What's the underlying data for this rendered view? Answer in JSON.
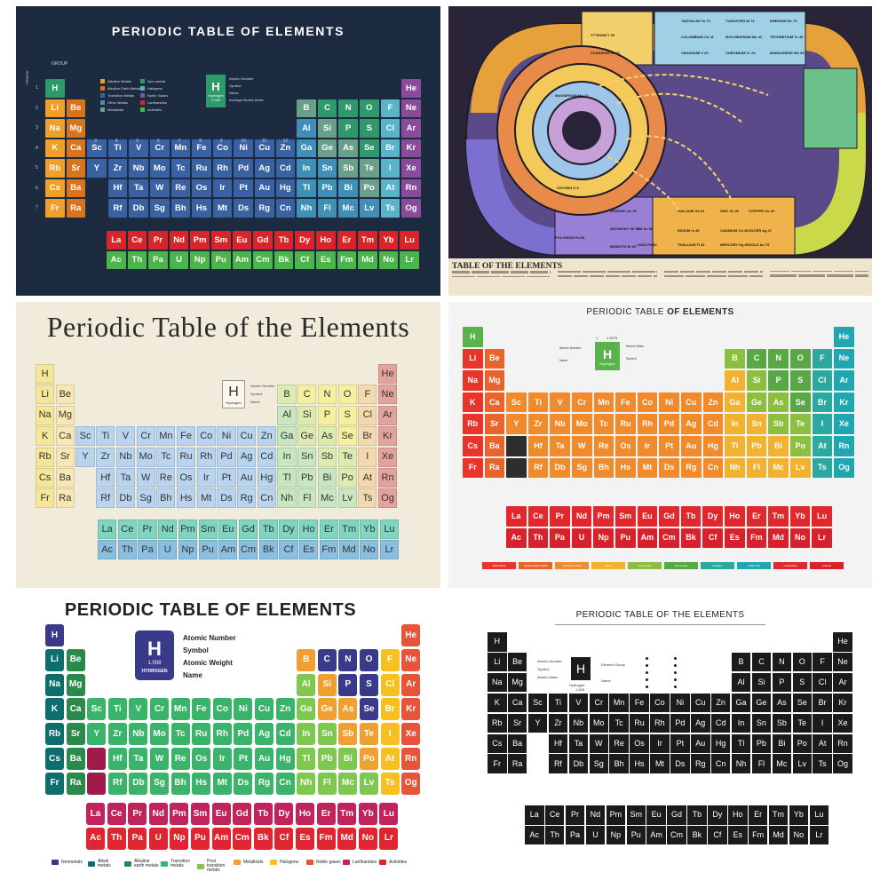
{
  "elements": {
    "rows": [
      [
        "H",
        "",
        "",
        "",
        "",
        "",
        "",
        "",
        "",
        "",
        "",
        "",
        "",
        "",
        "",
        "",
        "",
        "He"
      ],
      [
        "Li",
        "Be",
        "",
        "",
        "",
        "",
        "",
        "",
        "",
        "",
        "",
        "",
        "B",
        "C",
        "N",
        "O",
        "F",
        "Ne"
      ],
      [
        "Na",
        "Mg",
        "",
        "",
        "",
        "",
        "",
        "",
        "",
        "",
        "",
        "",
        "Al",
        "Si",
        "P",
        "S",
        "Cl",
        "Ar"
      ],
      [
        "K",
        "Ca",
        "Sc",
        "Ti",
        "V",
        "Cr",
        "Mn",
        "Fe",
        "Co",
        "Ni",
        "Cu",
        "Zn",
        "Ga",
        "Ge",
        "As",
        "Se",
        "Br",
        "Kr"
      ],
      [
        "Rb",
        "Sr",
        "Y",
        "Zr",
        "Nb",
        "Mo",
        "Tc",
        "Ru",
        "Rh",
        "Pd",
        "Ag",
        "Cd",
        "In",
        "Sn",
        "Sb",
        "Te",
        "I",
        "Xe"
      ],
      [
        "Cs",
        "Ba",
        "",
        "Hf",
        "Ta",
        "W",
        "Re",
        "Os",
        "Ir",
        "Pt",
        "Au",
        "Hg",
        "Tl",
        "Pb",
        "Bi",
        "Po",
        "At",
        "Rn"
      ],
      [
        "Fr",
        "Ra",
        "",
        "Rf",
        "Db",
        "Sg",
        "Bh",
        "Hs",
        "Mt",
        "Ds",
        "Rg",
        "Cn",
        "Nh",
        "Fl",
        "Mc",
        "Lv",
        "Ts",
        "Og"
      ]
    ],
    "lanthanides": [
      "La",
      "Ce",
      "Pr",
      "Nd",
      "Pm",
      "Sm",
      "Eu",
      "Gd",
      "Tb",
      "Dy",
      "Ho",
      "Er",
      "Tm",
      "Yb",
      "Lu"
    ],
    "actinides": [
      "Ac",
      "Th",
      "Pa",
      "U",
      "Np",
      "Pu",
      "Am",
      "Cm",
      "Bk",
      "Cf",
      "Es",
      "Fm",
      "Md",
      "No",
      "Lr"
    ]
  },
  "panel1": {
    "title": "PERIODIC TABLE OF ELEMENTS",
    "group_label": "GROUP",
    "period_label": "PERIOD",
    "group_numbers": [
      "1",
      "2",
      "3",
      "4",
      "5",
      "6",
      "7",
      "8",
      "9",
      "10",
      "11",
      "12",
      "13",
      "14",
      "15",
      "16",
      "17",
      "18"
    ],
    "period_numbers": [
      "1",
      "2",
      "3",
      "4",
      "5",
      "6",
      "7"
    ],
    "key": {
      "symbol": "H",
      "name": "Hydrogen",
      "mass": "1.008",
      "labels": [
        "Atomic Number",
        "Symbol",
        "Name",
        "Average Atomic Mass"
      ]
    },
    "legend": [
      "Alkaline Metals",
      "Alkaline Earth Metals",
      "Transition Metals",
      "Other Metals",
      "Metalloids",
      "Non-metals",
      "Halogens",
      "Noble Gases",
      "Lanthanides",
      "Actinides"
    ],
    "colors": {
      "bg": "#1d2b40",
      "alkali": "#f0a02a",
      "alkaline": "#d8741c",
      "transition": "#3a62a3",
      "post": "#3f8fb7",
      "metalloid": "#6aa08a",
      "nonmetal": "#2e9a6b",
      "halogen": "#5bb3c9",
      "noble": "#8a4b9c",
      "lanth": "#d9252a",
      "actin": "#4ab548",
      "h": "#2e9a6b"
    }
  },
  "panel2": {
    "foot_title": "TABLE OF THE ELEMENTS",
    "labels": [
      "TANTALUM Ta 73",
      "TUNGSTEN W 74",
      "RHENIUM Re 75",
      "COLUMBIUM Cb 41",
      "MOLYBDENUM Mo 42",
      "TECHNETIUM Tc 43",
      "VANADIUM V 23",
      "CHROMIUM Cr 24",
      "MANGANESE Mn 25",
      "YTTRIUM Y 39",
      "SCANDIUM Sc 21",
      "OXYGEN O 8",
      "MAGNESIUM Mg 12",
      "GALLIUM Ga 31",
      "INDIUM In 49",
      "THALLIUM Tl 81",
      "ZINC Zn 30",
      "CADMIUM Cd 48",
      "MERCURY Hg 80",
      "COPPER Cu 29",
      "SILVER Ag 47",
      "GOLD Au 79",
      "ARSENIC As 33",
      "ANTIMONY Sb 51",
      "BISMUTH Bi 83",
      "POLONIUM Po 84",
      "TIN Sn 50",
      "LEAD Pb 82"
    ],
    "colors": {
      "bg": "#2a2438",
      "foot": "#efe5cf"
    }
  },
  "panel3": {
    "title": "Periodic Table of the Elements",
    "key": {
      "symbol": "H",
      "name": "Hydrogen",
      "labels": [
        "Atomic Number",
        "Symbol",
        "Name"
      ]
    },
    "colors": {
      "alkali": "#f5e79a",
      "alkaline": "#f7e7b4",
      "transition": "#b9d4ee",
      "post": "#c8e6c0",
      "metalloid": "#dcebb0",
      "nonmetal": "#f5f0a0",
      "halogen": "#f4d9b0",
      "noble": "#e3a39d",
      "lanth": "#7fd5c0",
      "actin": "#8bbfe0",
      "h": "#f5e79a"
    }
  },
  "panel4": {
    "title_a": "PERIODIC TABLE ",
    "title_b": "OF ELEMENTS",
    "key": {
      "symbol": "H",
      "name": "Hydrogen",
      "number": "1",
      "mass": "1.0079",
      "labels": [
        "Atomic Number",
        "Atomic Mass",
        "Symbol",
        "Name"
      ]
    },
    "legend": [
      "Alkali Metal",
      "Alkaline Earth Metal",
      "Transition Metal",
      "Basic",
      "Semimetal",
      "Non-metal",
      "Halogen",
      "Noble Gas",
      "Lanthanide",
      "Actinide"
    ],
    "colors": {
      "alkali": "#e8342a",
      "alkaline": "#e9642a",
      "transition": "#f08a2a",
      "post": "#f2b230",
      "metalloid": "#8cbf3f",
      "nonmetal": "#59a845",
      "halogen": "#2aa9a0",
      "noble": "#1fa6b0",
      "lanth": "#e1282d",
      "actin": "#d8212b",
      "h": "#5ab34a",
      "special": "#2e2e2e"
    }
  },
  "panel5": {
    "title": "PERIODIC TABLE OF ELEMENTS",
    "key": {
      "symbol": "H",
      "name": "HYDROGEN",
      "mass": "1.008",
      "labels": [
        "Atomic Number",
        "Symbol",
        "Atomic Weight",
        "Name"
      ]
    },
    "legend": [
      "Nonmetals",
      "Alkali metals",
      "Alkaline earth metals",
      "Transition metals",
      "Post transition metals",
      "Metalloids",
      "Halogens",
      "Noble gases",
      "Lanthanides",
      "Actinides"
    ],
    "colors": {
      "alkali": "#0e6e6e",
      "alkaline": "#2a8a4a",
      "transition": "#3ab46a",
      "post": "#7ec850",
      "metalloid": "#f0a030",
      "nonmetal": "#3a3a8a",
      "halogen": "#f5c020",
      "noble": "#e8543a",
      "lanth": "#c0245a",
      "actin": "#e02430",
      "h": "#3a3a8a",
      "special": "#a01a4a"
    }
  },
  "panel6": {
    "title": "PERIODIC TABLE OF THE ELEMENTS",
    "key": {
      "symbol": "H",
      "name": "Hydrogen",
      "mass": "1.008",
      "labels": [
        "Atomic Number",
        "Element Group",
        "Symbol",
        "Name",
        "Atomic Mass"
      ]
    },
    "colors": {
      "cell": "#1b1b1b"
    }
  }
}
